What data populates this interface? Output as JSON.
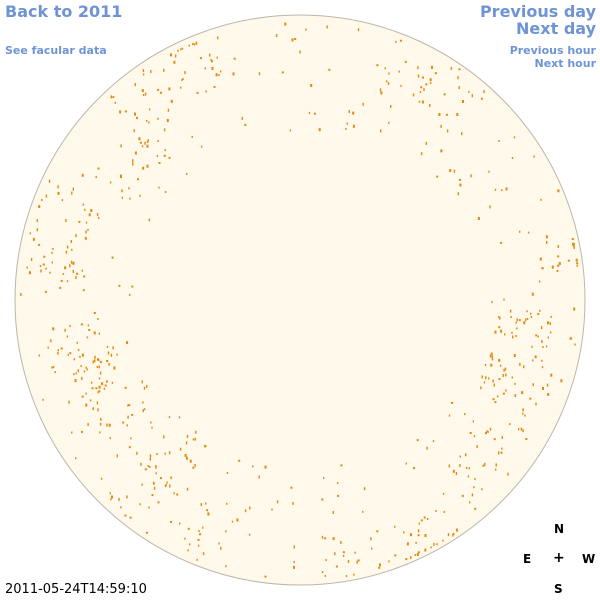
{
  "nav": {
    "back_label": "Back to 2011",
    "facular_label": "See facular data",
    "prev_day_label": "Previous day",
    "next_day_label": "Next day",
    "prev_hour_label": "Previous hour",
    "next_hour_label": "Next hour"
  },
  "compass": {
    "north": "N",
    "east": "E",
    "center": "+",
    "west": "W",
    "south": "S"
  },
  "timestamp": "2011-05-24T14:59:10",
  "colors": {
    "link": "#6f94d6",
    "disk_fill": "#fff9ec",
    "disk_outline": "#bdb6a8",
    "facula": "#e08a10"
  }
}
